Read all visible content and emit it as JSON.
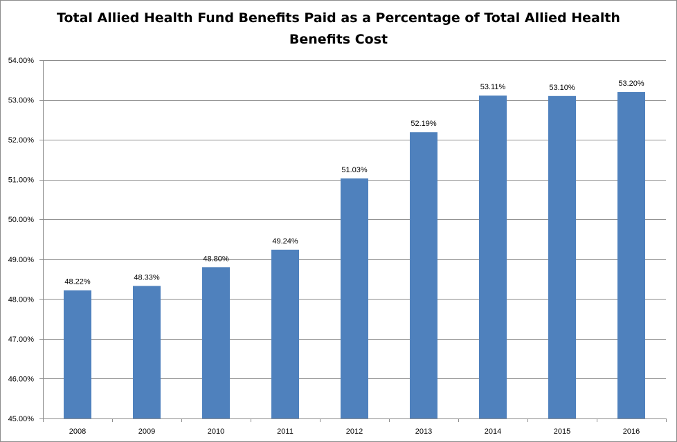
{
  "chart_data": {
    "type": "bar",
    "title_lines": [
      "Total Allied Health Fund Benefits Paid as a Percentage of Total Allied Health",
      "Benefits Cost"
    ],
    "categories": [
      "2008",
      "2009",
      "2010",
      "2011",
      "2012",
      "2013",
      "2014",
      "2015",
      "2016"
    ],
    "values": [
      48.22,
      48.33,
      48.8,
      49.24,
      51.03,
      52.19,
      53.11,
      53.1,
      53.2
    ],
    "data_labels": [
      "48.22%",
      "48.33%",
      "48.80%",
      "49.24%",
      "51.03%",
      "52.19%",
      "53.11%",
      "53.10%",
      "53.20%"
    ],
    "ylim": [
      45,
      54
    ],
    "yticks": [
      45,
      46,
      47,
      48,
      49,
      50,
      51,
      52,
      53,
      54
    ],
    "ytick_labels": [
      "45.00%",
      "46.00%",
      "47.00%",
      "48.00%",
      "49.00%",
      "50.00%",
      "51.00%",
      "52.00%",
      "53.00%",
      "54.00%"
    ],
    "xlabel": "",
    "ylabel": "",
    "grid": true,
    "legend": "none",
    "bar_color": "#4f81bd",
    "grid_color": "#8c8c8c"
  }
}
